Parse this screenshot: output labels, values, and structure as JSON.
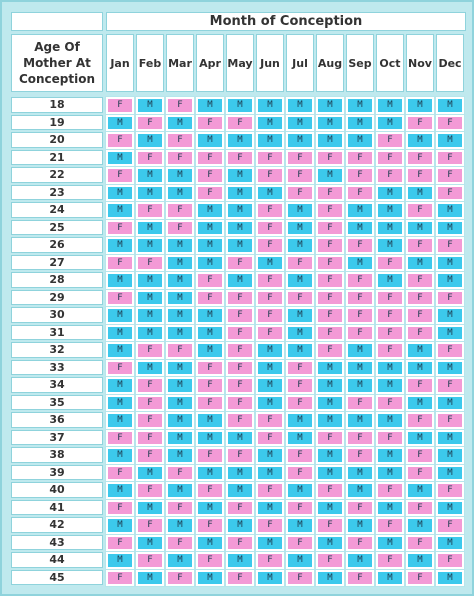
{
  "header": {
    "month_title": "Month of Conception",
    "age_header": "Age Of Mother At Conception"
  },
  "months": [
    "Jan",
    "Feb",
    "Mar",
    "Apr",
    "May",
    "Jun",
    "Jul",
    "Aug",
    "Sep",
    "Oct",
    "Nov",
    "Dec"
  ],
  "ages": [
    "18",
    "19",
    "20",
    "21",
    "22",
    "23",
    "24",
    "25",
    "26",
    "27",
    "28",
    "29",
    "30",
    "31",
    "32",
    "33",
    "34",
    "35",
    "36",
    "37",
    "38",
    "39",
    "40",
    "41",
    "42",
    "43",
    "44",
    "45"
  ],
  "grid": [
    [
      "F",
      "M",
      "F",
      "M",
      "M",
      "M",
      "M",
      "M",
      "M",
      "M",
      "M",
      "M"
    ],
    [
      "M",
      "F",
      "M",
      "F",
      "F",
      "M",
      "M",
      "M",
      "M",
      "M",
      "F",
      "F"
    ],
    [
      "F",
      "M",
      "F",
      "M",
      "M",
      "M",
      "M",
      "M",
      "M",
      "F",
      "M",
      "M"
    ],
    [
      "M",
      "F",
      "F",
      "F",
      "F",
      "F",
      "F",
      "F",
      "F",
      "F",
      "F",
      "F"
    ],
    [
      "F",
      "M",
      "M",
      "F",
      "M",
      "F",
      "F",
      "M",
      "F",
      "F",
      "F",
      "F"
    ],
    [
      "M",
      "M",
      "M",
      "F",
      "M",
      "M",
      "F",
      "F",
      "F",
      "M",
      "M",
      "F"
    ],
    [
      "M",
      "F",
      "F",
      "M",
      "M",
      "F",
      "M",
      "F",
      "M",
      "M",
      "F",
      "M"
    ],
    [
      "F",
      "M",
      "F",
      "M",
      "M",
      "F",
      "M",
      "F",
      "M",
      "M",
      "M",
      "M"
    ],
    [
      "M",
      "M",
      "M",
      "M",
      "M",
      "F",
      "M",
      "F",
      "F",
      "M",
      "F",
      "F"
    ],
    [
      "F",
      "F",
      "M",
      "M",
      "F",
      "M",
      "F",
      "F",
      "M",
      "F",
      "M",
      "M"
    ],
    [
      "M",
      "M",
      "M",
      "F",
      "M",
      "F",
      "M",
      "F",
      "F",
      "M",
      "F",
      "M"
    ],
    [
      "F",
      "M",
      "M",
      "F",
      "F",
      "F",
      "F",
      "F",
      "F",
      "F",
      "F",
      "F"
    ],
    [
      "M",
      "M",
      "M",
      "M",
      "F",
      "F",
      "M",
      "F",
      "F",
      "F",
      "F",
      "M"
    ],
    [
      "M",
      "M",
      "M",
      "M",
      "F",
      "F",
      "M",
      "F",
      "F",
      "F",
      "F",
      "M"
    ],
    [
      "M",
      "F",
      "F",
      "M",
      "F",
      "M",
      "M",
      "F",
      "M",
      "F",
      "M",
      "F"
    ],
    [
      "F",
      "M",
      "M",
      "F",
      "F",
      "M",
      "F",
      "M",
      "M",
      "M",
      "M",
      "M"
    ],
    [
      "M",
      "F",
      "M",
      "F",
      "F",
      "M",
      "F",
      "M",
      "M",
      "M",
      "F",
      "F"
    ],
    [
      "M",
      "F",
      "M",
      "F",
      "F",
      "M",
      "F",
      "M",
      "F",
      "F",
      "M",
      "M"
    ],
    [
      "M",
      "F",
      "M",
      "M",
      "F",
      "F",
      "M",
      "M",
      "M",
      "M",
      "F",
      "F"
    ],
    [
      "F",
      "F",
      "M",
      "M",
      "M",
      "F",
      "M",
      "F",
      "F",
      "F",
      "M",
      "M"
    ],
    [
      "M",
      "F",
      "M",
      "F",
      "F",
      "M",
      "F",
      "M",
      "F",
      "M",
      "F",
      "M"
    ],
    [
      "F",
      "M",
      "F",
      "M",
      "M",
      "M",
      "F",
      "M",
      "M",
      "M",
      "F",
      "M"
    ],
    [
      "M",
      "F",
      "M",
      "F",
      "M",
      "F",
      "M",
      "F",
      "M",
      "F",
      "M",
      "F"
    ],
    [
      "F",
      "M",
      "F",
      "M",
      "F",
      "M",
      "F",
      "M",
      "F",
      "M",
      "F",
      "M"
    ],
    [
      "M",
      "F",
      "M",
      "F",
      "M",
      "F",
      "M",
      "F",
      "M",
      "F",
      "M",
      "F"
    ],
    [
      "F",
      "M",
      "F",
      "M",
      "F",
      "M",
      "F",
      "M",
      "F",
      "M",
      "F",
      "M"
    ],
    [
      "M",
      "F",
      "M",
      "F",
      "M",
      "F",
      "M",
      "F",
      "M",
      "F",
      "M",
      "F"
    ],
    [
      "F",
      "M",
      "F",
      "M",
      "F",
      "M",
      "F",
      "M",
      "F",
      "M",
      "F",
      "M"
    ]
  ],
  "colors": {
    "male": "#3cc9ec",
    "female": "#f39ad6",
    "border": "#8fd3dc",
    "frame": "#bfe9ee"
  }
}
